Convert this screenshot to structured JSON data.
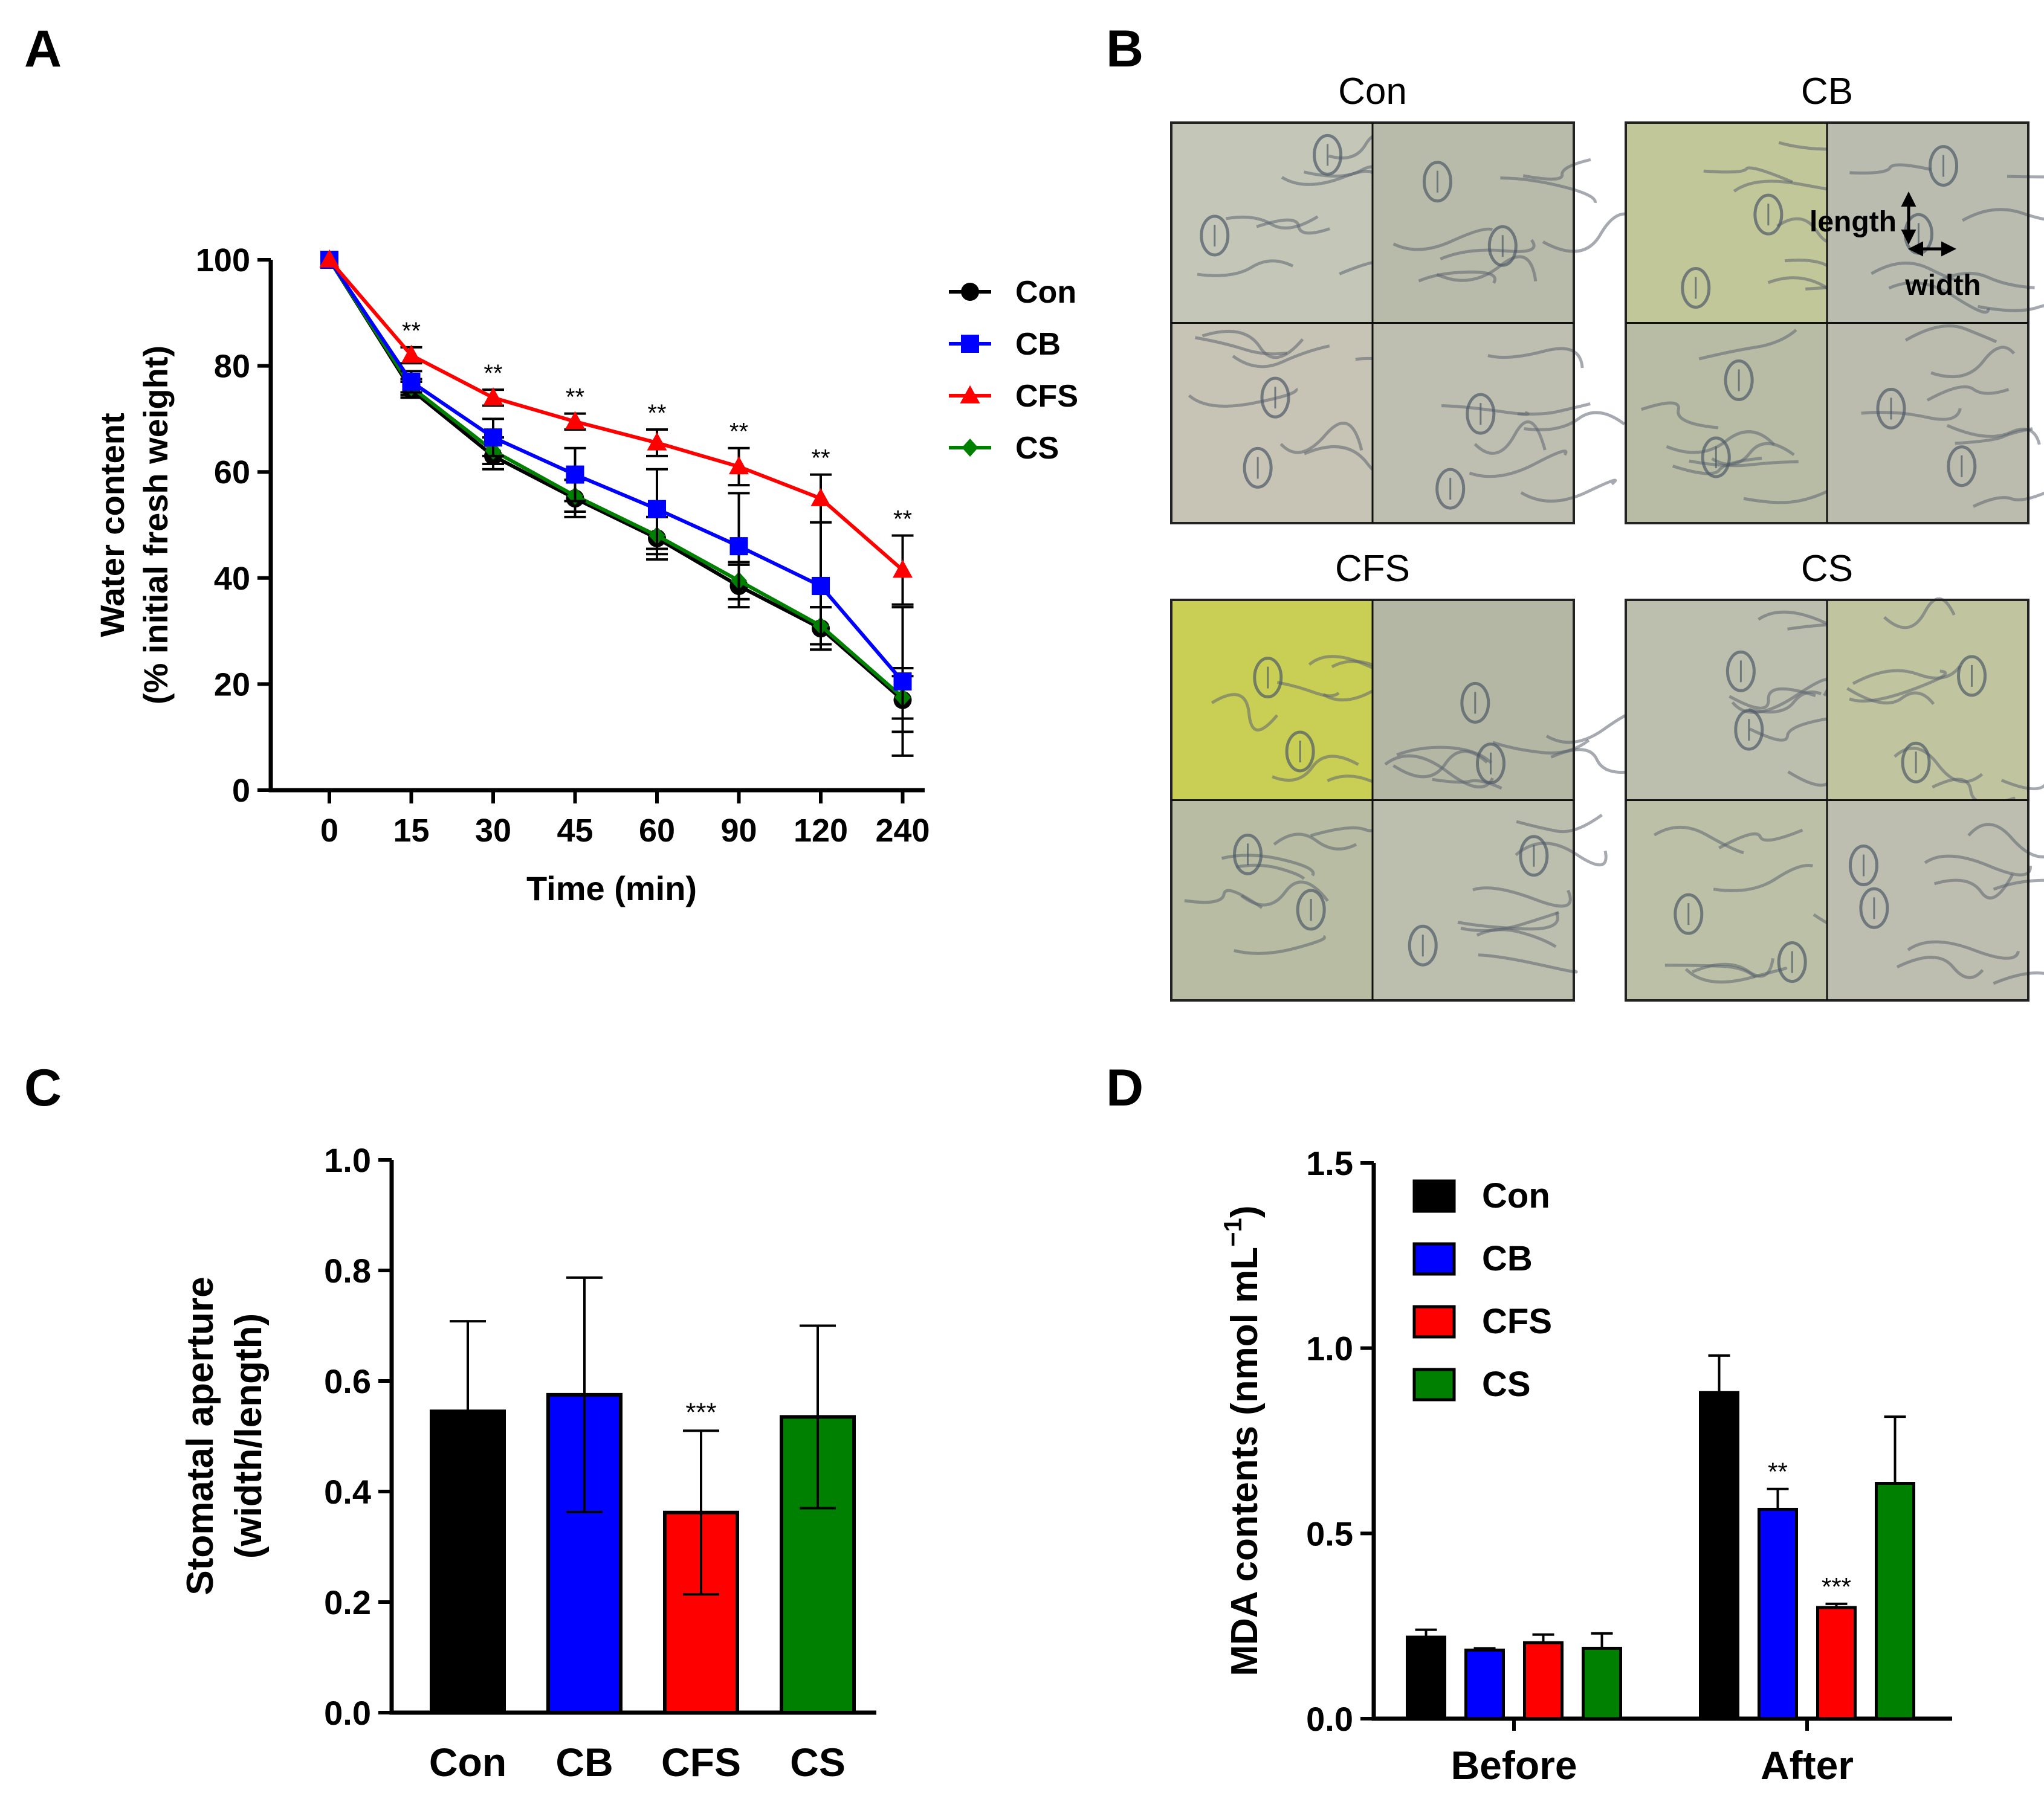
{
  "panels": {
    "a": "A",
    "b": "B",
    "c": "C",
    "d": "D"
  },
  "colors": {
    "Con": "#000000",
    "CB": "#0000ff",
    "CFS": "#ff0000",
    "CS": "#008000"
  },
  "chart_data": [
    {
      "type": "line",
      "panel": "A",
      "title": "",
      "xlabel": "Time (min)",
      "ylabel_line1": "Water content",
      "ylabel_line2": "(% initial fresh weight)",
      "categories": [
        "0",
        "15",
        "30",
        "45",
        "60",
        "90",
        "120",
        "240"
      ],
      "ylim": [
        0,
        100
      ],
      "yticks": [
        "0",
        "20",
        "40",
        "60",
        "80",
        "100"
      ],
      "legend_position": "top-right",
      "series": [
        {
          "name": "Con",
          "marker": "circle",
          "values": [
            100,
            75.5,
            63,
            55,
            47.5,
            38.5,
            30.5,
            17
          ],
          "errors": [
            0,
            1.5,
            2.5,
            3.5,
            4,
            4,
            4,
            6
          ]
        },
        {
          "name": "CB",
          "marker": "square",
          "values": [
            100,
            77,
            66.5,
            59.5,
            53,
            46,
            38.5,
            20.5
          ],
          "errors": [
            0,
            2,
            3.5,
            5,
            7.5,
            10,
            12,
            14
          ]
        },
        {
          "name": "CFS",
          "marker": "triangle",
          "values": [
            100,
            82,
            74,
            69.5,
            65.5,
            61,
            55,
            41.5
          ],
          "errors": [
            0,
            1.5,
            1.5,
            1.5,
            2.5,
            3.5,
            4.5,
            6.5
          ]
        },
        {
          "name": "CS",
          "marker": "diamond",
          "values": [
            100,
            76,
            64,
            55.5,
            48,
            39.5,
            31,
            17.5
          ],
          "errors": [
            0,
            1.5,
            2.5,
            3,
            3.5,
            3.5,
            3.5,
            4
          ]
        }
      ],
      "significance": [
        "",
        "**",
        "**",
        "**",
        "**",
        "**",
        "**",
        "**"
      ]
    },
    {
      "type": "bar",
      "panel": "C",
      "title": "",
      "xlabel": "",
      "ylabel_line1": "Stomatal aperture",
      "ylabel_line2": "(width/length)",
      "categories": [
        "Con",
        "CB",
        "CFS",
        "CS"
      ],
      "values": [
        0.545,
        0.575,
        0.362,
        0.535
      ],
      "errors": [
        0.163,
        0.212,
        0.148,
        0.165
      ],
      "significance": [
        "",
        "",
        "***",
        ""
      ],
      "ylim": [
        0,
        1.0
      ],
      "yticks": [
        "0.0",
        "0.2",
        "0.4",
        "0.6",
        "0.8",
        "1.0"
      ]
    },
    {
      "type": "bar",
      "panel": "D",
      "title": "",
      "xlabel": "",
      "ylabel": "MDA contents (nmol mL",
      "ylabel_sup": "−1",
      "ylabel_end": ")",
      "categories": [
        "Before",
        "After"
      ],
      "ylim": [
        0,
        1.5
      ],
      "yticks": [
        "0.0",
        "0.5",
        "1.0",
        "1.5"
      ],
      "legend_position": "top-left",
      "series": [
        {
          "name": "Con",
          "values": [
            0.22,
            0.88
          ],
          "errors": [
            0.02,
            0.1
          ]
        },
        {
          "name": "CB",
          "values": [
            0.185,
            0.565
          ],
          "errors": [
            0.005,
            0.055
          ]
        },
        {
          "name": "CFS",
          "values": [
            0.205,
            0.3
          ],
          "errors": [
            0.022,
            0.01
          ]
        },
        {
          "name": "CS",
          "values": [
            0.19,
            0.635
          ],
          "errors": [
            0.04,
            0.18
          ]
        }
      ],
      "significance": [
        [
          "",
          "",
          "",
          ""
        ],
        [
          "",
          "**",
          "***",
          ""
        ]
      ]
    }
  ],
  "micrographs": {
    "items": [
      {
        "label": "Con",
        "tint": [
          "#c4c7b8",
          "#b8bba9",
          "#c7c4b5",
          "#bfbfb1"
        ]
      },
      {
        "label": "CB",
        "tint": [
          "#c2c79a",
          "#b9bcae",
          "#b8bca5",
          "#bcbcae"
        ]
      },
      {
        "label": "CFS",
        "tint": [
          "#c9cf55",
          "#b3b7a4",
          "#b7bca3",
          "#bcbfad"
        ]
      },
      {
        "label": "CS",
        "tint": [
          "#bcbfae",
          "#c0c59f",
          "#bcc0a6",
          "#bdbeb0"
        ]
      }
    ],
    "annotations": {
      "length": "length",
      "width": "width"
    }
  }
}
